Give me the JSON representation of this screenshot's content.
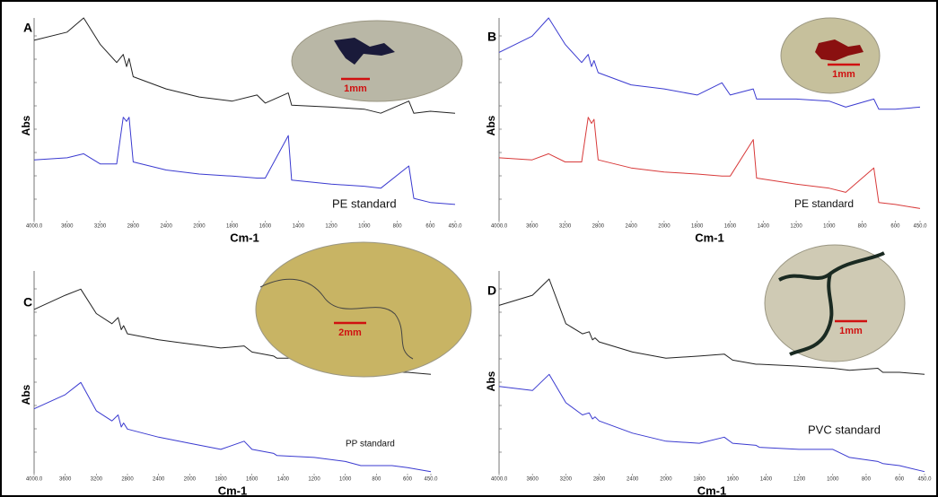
{
  "chart_data": [
    {
      "type": "line",
      "label": "A",
      "ylabel": "Abs",
      "xlabel": "Cm-1",
      "annotation": "PE standard",
      "scale_bar": "1mm",
      "x": [
        4000,
        3600,
        3400,
        3200,
        3000,
        2920,
        2880,
        2850,
        2800,
        2400,
        2000,
        1800,
        1650,
        1600,
        1460,
        1440,
        1200,
        1000,
        900,
        730,
        700,
        600,
        450
      ],
      "xlim": [
        4000,
        450
      ],
      "x_expansion": {
        "below": 2000,
        "factor": 2
      },
      "ylim": [
        0,
        100
      ],
      "xticks": [
        {
          "value": 4000,
          "label": "4000.0"
        },
        3600,
        3200,
        2800,
        2400,
        2000,
        1800,
        1600,
        1400,
        1200,
        1000,
        800,
        600,
        {
          "value": 450,
          "label": "450.0"
        }
      ],
      "series": [
        {
          "color": "#222222",
          "values": [
            89,
            93,
            100,
            87,
            78,
            82,
            76,
            80,
            71,
            65,
            61,
            59,
            62,
            58,
            63,
            57,
            56,
            55,
            53,
            59,
            53,
            54,
            53
          ]
        },
        {
          "color": "#3a3ad0",
          "values": [
            30,
            31,
            33,
            28,
            28,
            51,
            49,
            51,
            29,
            25,
            23,
            22,
            21,
            21,
            42,
            20,
            18,
            17,
            16,
            27,
            11,
            9,
            8
          ]
        }
      ]
    },
    {
      "type": "line",
      "label": "B",
      "ylabel": "Abs",
      "xlabel": "Cm-1",
      "annotation": "PE standard",
      "scale_bar": "1mm",
      "x": [
        4000,
        3600,
        3400,
        3200,
        3000,
        2920,
        2880,
        2850,
        2800,
        2400,
        2000,
        1800,
        1650,
        1600,
        1460,
        1440,
        1200,
        1000,
        900,
        730,
        700,
        600,
        450
      ],
      "xlim": [
        4000,
        450
      ],
      "x_expansion": {
        "below": 2000,
        "factor": 2
      },
      "ylim": [
        0,
        100
      ],
      "xticks": [
        {
          "value": 4000,
          "label": "4000.0"
        },
        3600,
        3200,
        2800,
        2400,
        2000,
        1800,
        1600,
        1400,
        1200,
        1000,
        800,
        600,
        {
          "value": 450,
          "label": "450.0"
        }
      ],
      "series": [
        {
          "color": "#3a3ad0",
          "values": [
            83,
            91,
            100,
            87,
            78,
            82,
            76,
            79,
            73,
            67,
            65,
            62,
            68,
            62,
            65,
            60,
            60,
            59,
            56,
            60,
            55,
            55,
            56
          ]
        },
        {
          "color": "#d83a3a",
          "values": [
            31,
            30,
            33,
            29,
            29,
            51,
            48,
            50,
            30,
            26,
            24,
            23,
            22,
            22,
            40,
            21,
            18,
            16,
            14,
            26,
            9,
            8,
            6
          ]
        }
      ]
    },
    {
      "type": "line",
      "label": "C",
      "ylabel": "Abs",
      "xlabel": "Cm-1",
      "annotation": "PP standard",
      "scale_bar": "2mm",
      "x": [
        4000,
        3600,
        3400,
        3200,
        3000,
        2920,
        2880,
        2850,
        2800,
        2400,
        2000,
        1800,
        1650,
        1600,
        1460,
        1440,
        1200,
        1000,
        900,
        730,
        700,
        600,
        450
      ],
      "xlim": [
        4000,
        450
      ],
      "x_expansion": {
        "below": 2000,
        "factor": 2
      },
      "ylim": [
        0,
        100
      ],
      "xticks": [
        {
          "value": 4000,
          "label": "4000.0"
        },
        3600,
        3200,
        2800,
        2400,
        2000,
        1800,
        1600,
        1400,
        1200,
        1000,
        800,
        600,
        {
          "value": 450,
          "label": "450.0"
        }
      ],
      "series": [
        {
          "color": "#222222",
          "values": [
            81,
            88,
            91,
            79,
            74,
            77,
            71,
            73,
            69,
            66,
            64,
            62,
            63,
            60,
            58,
            57,
            57,
            53,
            51,
            50,
            50,
            50,
            49
          ]
        },
        {
          "color": "#3a3ad0",
          "values": [
            32,
            39,
            45,
            31,
            26,
            29,
            23,
            25,
            22,
            18,
            15,
            12,
            16,
            12,
            10,
            9,
            8,
            6,
            4,
            4,
            4,
            3,
            1
          ]
        }
      ]
    },
    {
      "type": "line",
      "label": "D",
      "ylabel": "Abs",
      "xlabel": "Cm-1",
      "annotation": "PVC standard",
      "scale_bar": "1mm",
      "x": [
        4000,
        3600,
        3400,
        3200,
        3000,
        2920,
        2880,
        2850,
        2800,
        2400,
        2000,
        1800,
        1650,
        1600,
        1460,
        1440,
        1200,
        1000,
        900,
        730,
        700,
        600,
        450
      ],
      "xlim": [
        4000,
        450
      ],
      "x_expansion": {
        "below": 2000,
        "factor": 2
      },
      "ylim": [
        0,
        100
      ],
      "xticks": [
        {
          "value": 4000,
          "label": "4000.0"
        },
        3600,
        3200,
        2800,
        2400,
        2000,
        1800,
        1600,
        1400,
        1200,
        1000,
        800,
        600,
        {
          "value": 450,
          "label": "450.0"
        }
      ],
      "series": [
        {
          "color": "#222222",
          "values": [
            83,
            88,
            96,
            74,
            69,
            70,
            66,
            67,
            65,
            60,
            57,
            58,
            59,
            56,
            54,
            54,
            53,
            52,
            51,
            52,
            50,
            50,
            49
          ]
        },
        {
          "color": "#3a3ad0",
          "values": [
            43,
            41,
            49,
            35,
            29,
            30,
            27,
            28,
            26,
            20,
            16,
            15,
            18,
            15,
            14,
            13,
            12,
            12,
            8,
            6,
            5,
            4,
            1
          ]
        }
      ]
    }
  ]
}
